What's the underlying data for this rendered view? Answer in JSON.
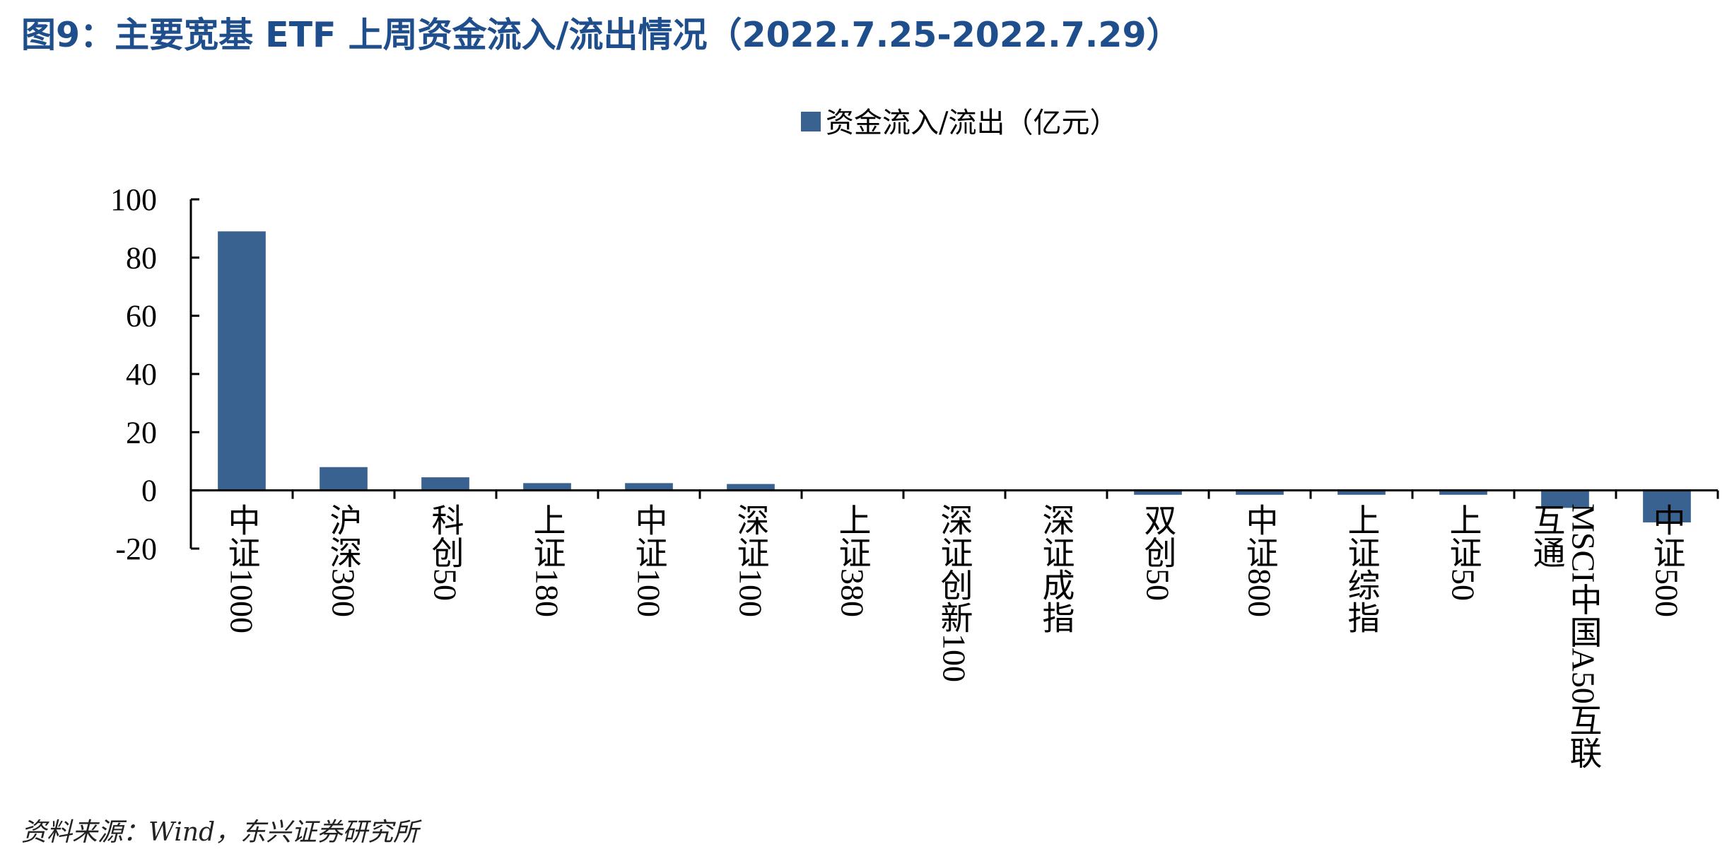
{
  "title": "图9：主要宽基 ETF 上周资金流入/流出情况（2022.7.25-2022.7.29）",
  "source": "资料来源：Wind，东兴证券研究所",
  "colors": {
    "bar": "#3a6290",
    "title": "#1f4e8c",
    "axis": "#000000"
  },
  "chart_data": {
    "type": "bar",
    "categories": [
      "中证1000",
      "沪深300",
      "科创50",
      "上证180",
      "中证100",
      "深证100",
      "上证380",
      "深证创新100",
      "深证成指",
      "双创50",
      "中证800",
      "上证综指",
      "上证50",
      "MSCI中国A50互联互通",
      "中证500"
    ],
    "category_lines": [
      [
        "中证1000"
      ],
      [
        "沪深300"
      ],
      [
        "科创50"
      ],
      [
        "上证180"
      ],
      [
        "中证100"
      ],
      [
        "深证100"
      ],
      [
        "上证380"
      ],
      [
        "深证创新100"
      ],
      [
        "深证成指"
      ],
      [
        "双创50"
      ],
      [
        "中证800"
      ],
      [
        "上证综指"
      ],
      [
        "上证50"
      ],
      [
        "MSCI中国A50互联",
        "互通"
      ],
      [
        "中证500"
      ]
    ],
    "series": [
      {
        "name": "资金流入/流出（亿元）",
        "values": [
          89,
          8,
          4.5,
          2.5,
          2.5,
          2.2,
          0,
          0,
          0,
          -1.5,
          -1.5,
          -1.5,
          -1.5,
          -6,
          -11
        ]
      }
    ],
    "ylim": [
      -20,
      100
    ],
    "yticks": [
      100,
      80,
      60,
      40,
      20,
      0,
      -20
    ],
    "legend_position": "top-center",
    "grid": false
  }
}
